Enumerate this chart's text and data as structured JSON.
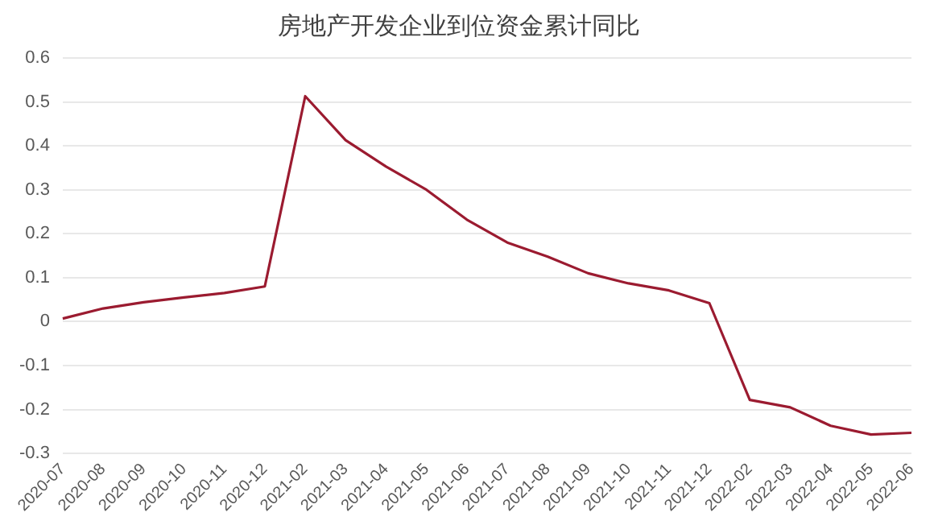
{
  "chart_data": {
    "type": "line",
    "title": "房地产开发企业到位资金累计同比",
    "categories": [
      "2020-07",
      "2020-08",
      "2020-09",
      "2020-10",
      "2020-11",
      "2020-12",
      "2021-02",
      "2021-03",
      "2021-04",
      "2021-05",
      "2021-06",
      "2021-07",
      "2021-08",
      "2021-09",
      "2021-10",
      "2021-11",
      "2021-12",
      "2022-02",
      "2022-03",
      "2022-04",
      "2022-05",
      "2022-06"
    ],
    "series": [
      {
        "color": "#9b1b30",
        "values": [
          0.007,
          0.03,
          0.044,
          0.055,
          0.065,
          0.08,
          0.513,
          0.413,
          0.353,
          0.3,
          0.232,
          0.18,
          0.148,
          0.11,
          0.087,
          0.071,
          0.042,
          -0.178,
          -0.195,
          -0.237,
          -0.257,
          -0.253
        ]
      }
    ],
    "ylim": [
      -0.3,
      0.6
    ],
    "yticks": [
      -0.3,
      -0.2,
      -0.1,
      0,
      0.1,
      0.2,
      0.3,
      0.4,
      0.5,
      0.6
    ],
    "grid": "y",
    "legend": false,
    "marker": "none",
    "line_style": "solid"
  }
}
